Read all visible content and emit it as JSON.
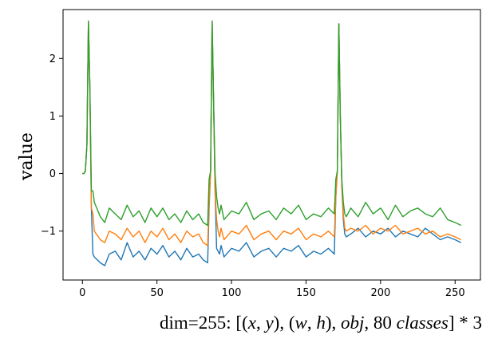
{
  "chart_data": {
    "type": "line",
    "ylabel": "value",
    "caption": {
      "prefix": "dim=255: [(",
      "x": "x",
      "sep1": ", ",
      "y": "y",
      "sep2": "), (",
      "w": "w",
      "sep3": ", ",
      "h": "h",
      "sep4": "), ",
      "obj": "obj",
      "sep5": ", 80 ",
      "classes": "classes",
      "suffix": "] * 3"
    },
    "xlim": [
      -13,
      267
    ],
    "ylim": [
      -1.85,
      2.85
    ],
    "x_ticks": [
      0,
      50,
      100,
      150,
      200,
      250
    ],
    "y_ticks": [
      -1,
      0,
      1,
      2
    ],
    "grid": false,
    "legend": "none",
    "series": [
      {
        "color": "#1f77b4",
        "x": [
          0,
          1,
          2,
          3,
          4,
          5,
          6,
          7,
          8,
          12,
          15,
          18,
          22,
          26,
          30,
          34,
          38,
          42,
          46,
          50,
          54,
          58,
          62,
          66,
          70,
          74,
          78,
          81,
          84,
          85,
          86,
          87,
          88,
          89,
          90,
          91,
          92,
          93,
          95,
          100,
          105,
          110,
          115,
          120,
          125,
          130,
          135,
          140,
          145,
          150,
          155,
          160,
          165,
          169,
          170,
          171,
          172,
          173,
          174,
          175,
          176,
          177,
          180,
          185,
          190,
          195,
          200,
          205,
          210,
          215,
          220,
          225,
          230,
          235,
          240,
          245,
          250,
          254
        ],
        "y": [
          0.0,
          0.0,
          0.05,
          0.5,
          2.65,
          1.5,
          -0.6,
          -1.4,
          -1.45,
          -1.55,
          -1.6,
          -1.4,
          -1.35,
          -1.5,
          -1.2,
          -1.45,
          -1.35,
          -1.5,
          -1.3,
          -1.4,
          -1.25,
          -1.45,
          -1.35,
          -1.5,
          -1.3,
          -1.45,
          -1.4,
          -1.5,
          -1.55,
          -0.6,
          0.05,
          2.65,
          1.2,
          -0.3,
          -1.3,
          -1.35,
          -1.4,
          -1.25,
          -1.45,
          -1.3,
          -1.35,
          -1.2,
          -1.45,
          -1.35,
          -1.3,
          -1.45,
          -1.3,
          -1.35,
          -1.25,
          -1.45,
          -1.35,
          -1.4,
          -1.3,
          -1.4,
          -0.4,
          0.05,
          2.6,
          1.0,
          -0.2,
          -0.8,
          -1.05,
          -1.1,
          -1.05,
          -0.95,
          -1.1,
          -1.0,
          -1.05,
          -0.95,
          -1.1,
          -1.0,
          -1.05,
          -1.1,
          -0.95,
          -1.05,
          -1.15,
          -1.1,
          -1.15,
          -1.2
        ]
      },
      {
        "color": "#ff7f0e",
        "x": [
          0,
          1,
          2,
          3,
          4,
          5,
          6,
          7,
          8,
          12,
          15,
          18,
          22,
          26,
          30,
          34,
          38,
          42,
          46,
          50,
          54,
          58,
          62,
          66,
          70,
          74,
          78,
          81,
          84,
          85,
          86,
          87,
          88,
          89,
          90,
          91,
          92,
          93,
          95,
          100,
          105,
          110,
          115,
          120,
          125,
          130,
          135,
          140,
          145,
          150,
          155,
          160,
          165,
          169,
          170,
          171,
          172,
          173,
          174,
          175,
          176,
          177,
          180,
          185,
          190,
          195,
          200,
          205,
          210,
          215,
          220,
          225,
          230,
          235,
          240,
          245,
          250,
          254
        ],
        "y": [
          0.0,
          0.0,
          0.05,
          0.5,
          2.65,
          1.5,
          -0.6,
          -0.7,
          -1.0,
          -1.15,
          -1.2,
          -1.0,
          -1.05,
          -1.15,
          -0.95,
          -1.1,
          -1.0,
          -1.2,
          -1.0,
          -1.1,
          -0.95,
          -1.15,
          -1.05,
          -1.2,
          -1.0,
          -1.1,
          -1.05,
          -1.2,
          -1.25,
          -0.5,
          0.05,
          2.65,
          1.2,
          -0.3,
          -0.8,
          -1.0,
          -1.1,
          -0.95,
          -1.15,
          -1.0,
          -1.05,
          -0.9,
          -1.15,
          -1.05,
          -1.0,
          -1.15,
          -1.0,
          -1.05,
          -0.95,
          -1.15,
          -1.05,
          -1.1,
          -1.0,
          -1.1,
          -0.4,
          0.05,
          2.6,
          1.0,
          -0.2,
          -0.7,
          -0.95,
          -1.0,
          -0.95,
          -1.0,
          -0.9,
          -1.05,
          -0.95,
          -1.0,
          -0.9,
          -1.05,
          -1.0,
          -0.95,
          -1.05,
          -1.0,
          -1.1,
          -1.05,
          -1.1,
          -1.15
        ]
      },
      {
        "color": "#2ca02c",
        "x": [
          0,
          1,
          2,
          3,
          4,
          5,
          6,
          7,
          8,
          12,
          15,
          18,
          22,
          26,
          30,
          34,
          38,
          42,
          46,
          50,
          54,
          58,
          62,
          66,
          70,
          74,
          78,
          81,
          84,
          85,
          86,
          87,
          88,
          89,
          90,
          91,
          92,
          93,
          95,
          100,
          105,
          110,
          115,
          120,
          125,
          130,
          135,
          140,
          145,
          150,
          155,
          160,
          165,
          169,
          170,
          171,
          172,
          173,
          174,
          175,
          176,
          177,
          180,
          185,
          190,
          195,
          200,
          205,
          210,
          215,
          220,
          225,
          230,
          235,
          240,
          245,
          250,
          254
        ],
        "y": [
          0.0,
          0.0,
          0.05,
          0.5,
          2.65,
          1.5,
          -0.3,
          -0.3,
          -0.5,
          -0.75,
          -0.85,
          -0.6,
          -0.7,
          -0.8,
          -0.55,
          -0.75,
          -0.65,
          -0.85,
          -0.6,
          -0.75,
          -0.6,
          -0.8,
          -0.7,
          -0.85,
          -0.65,
          -0.8,
          -0.7,
          -0.85,
          -0.9,
          -0.1,
          0.05,
          2.65,
          1.2,
          0.0,
          -0.4,
          -0.6,
          -0.7,
          -0.55,
          -0.8,
          -0.65,
          -0.7,
          -0.5,
          -0.8,
          -0.7,
          -0.65,
          -0.8,
          -0.6,
          -0.7,
          -0.55,
          -0.8,
          -0.7,
          -0.75,
          -0.6,
          -0.7,
          -0.1,
          0.05,
          2.6,
          1.0,
          -0.1,
          -0.5,
          -0.7,
          -0.75,
          -0.6,
          -0.75,
          -0.5,
          -0.7,
          -0.6,
          -0.8,
          -0.55,
          -0.75,
          -0.65,
          -0.6,
          -0.7,
          -0.75,
          -0.6,
          -0.8,
          -0.85,
          -0.9
        ]
      }
    ]
  }
}
